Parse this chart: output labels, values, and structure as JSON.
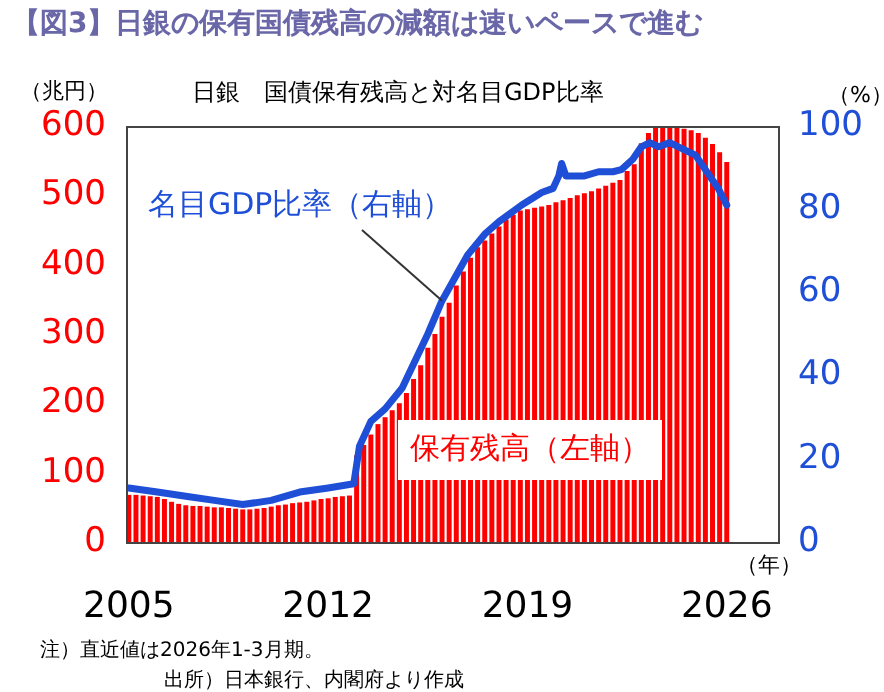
{
  "chart_data": {
    "type": "bar",
    "title": "【図3】日銀の保有国債残高の減額は速いペースで進む",
    "subtitle": "日銀　国債保有残高と対名目GDP比率",
    "ylabel": "（兆円）",
    "y2label": "（%）",
    "xlabel": "（年）",
    "xlim": [
      2004.9,
      2027.8
    ],
    "xticks": [
      2005,
      2012,
      2019,
      2026
    ],
    "ylim": [
      0,
      600
    ],
    "yticks": [
      0,
      100,
      200,
      300,
      400,
      500,
      600
    ],
    "y2lim": [
      0,
      100
    ],
    "y2ticks": [
      0,
      20,
      40,
      60,
      80,
      100
    ],
    "grid": false,
    "legend": false,
    "series": [
      {
        "name": "保有残高（左軸）",
        "color": "#ff0000",
        "x": [
          2005,
          2005.25,
          2005.5,
          2005.75,
          2006,
          2006.25,
          2006.5,
          2006.75,
          2007,
          2007.25,
          2007.5,
          2007.75,
          2008,
          2008.25,
          2008.5,
          2008.75,
          2009,
          2009.25,
          2009.5,
          2009.75,
          2010,
          2010.25,
          2010.5,
          2010.75,
          2011,
          2011.25,
          2011.5,
          2011.75,
          2012,
          2012.25,
          2012.5,
          2012.75,
          2013,
          2013.25,
          2013.5,
          2013.75,
          2014,
          2014.25,
          2014.5,
          2014.75,
          2015,
          2015.25,
          2015.5,
          2015.75,
          2016,
          2016.25,
          2016.5,
          2016.75,
          2017,
          2017.25,
          2017.5,
          2017.75,
          2018,
          2018.25,
          2018.5,
          2018.75,
          2019,
          2019.25,
          2019.5,
          2019.75,
          2020,
          2020.25,
          2020.5,
          2020.75,
          2021,
          2021.25,
          2021.5,
          2021.75,
          2022,
          2022.25,
          2022.5,
          2022.75,
          2023,
          2023.25,
          2023.5,
          2023.75,
          2024,
          2024.25,
          2024.5,
          2024.75,
          2025,
          2025.25,
          2025.5,
          2025.75,
          2026
        ],
        "values": [
          68,
          68,
          67,
          66,
          65,
          62,
          58,
          55,
          53,
          52,
          52,
          51,
          50,
          50,
          49,
          48,
          47,
          47,
          48,
          49,
          51,
          53,
          54,
          56,
          57,
          58,
          60,
          62,
          63,
          65,
          66,
          67,
          125,
          140,
          155,
          170,
          180,
          190,
          200,
          215,
          235,
          255,
          280,
          300,
          325,
          345,
          370,
          390,
          410,
          425,
          435,
          445,
          455,
          465,
          472,
          478,
          480,
          482,
          484,
          486,
          490,
          493,
          496,
          500,
          503,
          506,
          510,
          514,
          518,
          522,
          535,
          545,
          575,
          590,
          598,
          600,
          598,
          597,
          596,
          594,
          590,
          583,
          574,
          562,
          548
        ]
      },
      {
        "name": "名目GDP比率（右軸）",
        "type": "line",
        "axis": "y2",
        "color": "#1f4fd6",
        "marker": "none",
        "line_style": "solid",
        "x": [
          2005,
          2006,
          2007,
          2008,
          2009,
          2010,
          2011,
          2012,
          2012.9,
          2013.1,
          2013.5,
          2014,
          2014.6,
          2015.5,
          2016,
          2016.9,
          2017.5,
          2018,
          2018.8,
          2019.5,
          2019.9,
          2020.1,
          2020.2,
          2020.35,
          2020.6,
          2021,
          2021.5,
          2022,
          2022.3,
          2022.7,
          2023,
          2023.3,
          2023.6,
          2024,
          2024.3,
          2024.9,
          2025.3,
          2025.7,
          2026
        ],
        "values": [
          13,
          12,
          11,
          10,
          9,
          10,
          12,
          13,
          14,
          23,
          29,
          32,
          37,
          50,
          58,
          69,
          74,
          77,
          81,
          84,
          85,
          88,
          91,
          88,
          88,
          88,
          89,
          89,
          89.5,
          92,
          95,
          96,
          95,
          96,
          95,
          93,
          89,
          85,
          81
        ]
      }
    ],
    "annotations": [
      "注）直近値は2026年1-3月期。",
      "出所）日本銀行、内閣府より作成"
    ]
  }
}
